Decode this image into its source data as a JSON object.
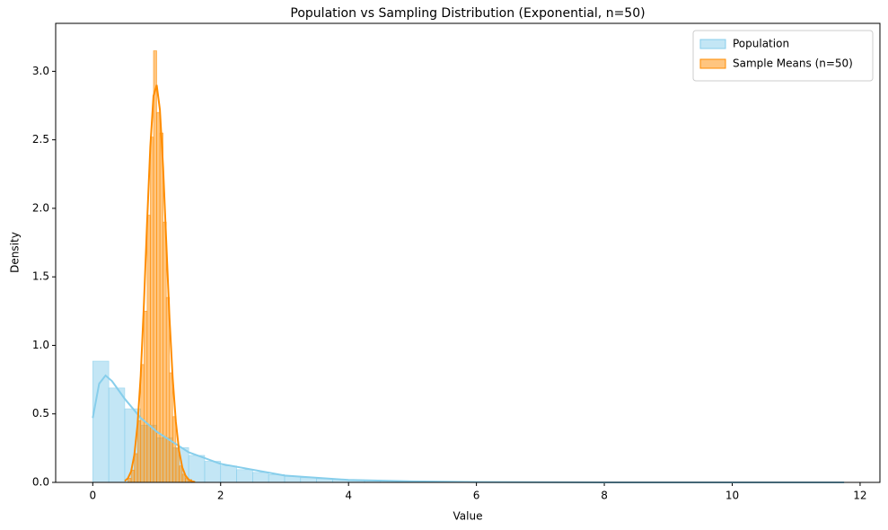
{
  "chart_data": {
    "type": "histogram",
    "title": "Population vs Sampling Distribution (Exponential, n=50)",
    "xlabel": "Value",
    "ylabel": "Density",
    "xlim": [
      -0.58,
      12.31
    ],
    "ylim": [
      0,
      3.35
    ],
    "xticks": [
      0,
      2,
      4,
      6,
      8,
      10,
      12
    ],
    "yticks": [
      {
        "value": 0,
        "label": "0.0"
      },
      {
        "value": 0.5,
        "label": "0.5"
      },
      {
        "value": 1,
        "label": "1.0"
      },
      {
        "value": 1.5,
        "label": "1.5"
      },
      {
        "value": 2,
        "label": "2.0"
      },
      {
        "value": 2.5,
        "label": "2.5"
      },
      {
        "value": 3,
        "label": "3.0"
      }
    ],
    "legend": "upper right",
    "series": [
      {
        "name": "Population",
        "color": "#87ceeb",
        "bins": [
          0,
          0.25,
          0.5,
          0.75,
          1,
          1.25,
          1.5,
          1.75,
          2,
          2.25,
          2.5,
          2.75,
          3,
          3.25,
          3.5,
          3.75,
          4,
          4.25,
          4.5,
          4.75,
          5,
          5.25,
          5.5,
          5.75,
          6,
          6.25,
          6.5,
          6.75,
          7,
          7.25,
          7.5,
          7.75,
          8,
          8.25,
          8.5,
          8.75,
          9,
          9.25,
          9.5,
          9.75,
          10,
          10.25,
          10.5,
          10.75,
          11,
          11.25,
          11.5,
          11.75
        ],
        "values": [
          0.885,
          0.689,
          0.537,
          0.418,
          0.326,
          0.254,
          0.197,
          0.154,
          0.12,
          0.093,
          0.073,
          0.057,
          0.044,
          0.034,
          0.027,
          0.021,
          0.016,
          0.013,
          0.01,
          0.008,
          0.006,
          0.005,
          0.004,
          0.003,
          0.002,
          0.002,
          0.001,
          0.001,
          0.001,
          0.001,
          0.001,
          0,
          0,
          0,
          0,
          0,
          0,
          0,
          0,
          0,
          0,
          0,
          0,
          0,
          0,
          0,
          0.001
        ],
        "kde": {
          "x": [
            0,
            0.1,
            0.2,
            0.3,
            0.5,
            0.75,
            1,
            1.5,
            2,
            3,
            4,
            5,
            6,
            8,
            10,
            11.75
          ],
          "values": [
            0.47,
            0.72,
            0.78,
            0.74,
            0.61,
            0.47,
            0.37,
            0.22,
            0.135,
            0.05,
            0.018,
            0.007,
            0.0025,
            0.0004,
            0.0001,
            3e-05
          ]
        }
      },
      {
        "name": "Sample Means (n=50)",
        "color": "#ff8c00",
        "bins": [
          0.55,
          0.6,
          0.65,
          0.7,
          0.75,
          0.8,
          0.85,
          0.9,
          0.95,
          1,
          1.05,
          1.1,
          1.15,
          1.2,
          1.25,
          1.3,
          1.35,
          1.4,
          1.45,
          1.5,
          1.55
        ],
        "values": [
          0.03,
          0.09,
          0.21,
          0.45,
          0.86,
          1.25,
          1.95,
          2.52,
          3.15,
          2.7,
          2.55,
          1.9,
          1.35,
          0.8,
          0.48,
          0.25,
          0.12,
          0.06,
          0.03,
          0.02
        ],
        "kde": {
          "x": [
            0.5,
            0.55,
            0.6,
            0.65,
            0.7,
            0.75,
            0.8,
            0.85,
            0.9,
            0.95,
            1,
            1.05,
            1.1,
            1.15,
            1.2,
            1.25,
            1.3,
            1.35,
            1.4,
            1.45,
            1.5,
            1.55,
            1.6
          ],
          "values": [
            0.01,
            0.03,
            0.08,
            0.2,
            0.42,
            0.78,
            1.3,
            1.9,
            2.45,
            2.82,
            2.9,
            2.72,
            2.3,
            1.75,
            1.2,
            0.76,
            0.44,
            0.23,
            0.11,
            0.05,
            0.02,
            0.008,
            0.003
          ]
        }
      }
    ]
  }
}
